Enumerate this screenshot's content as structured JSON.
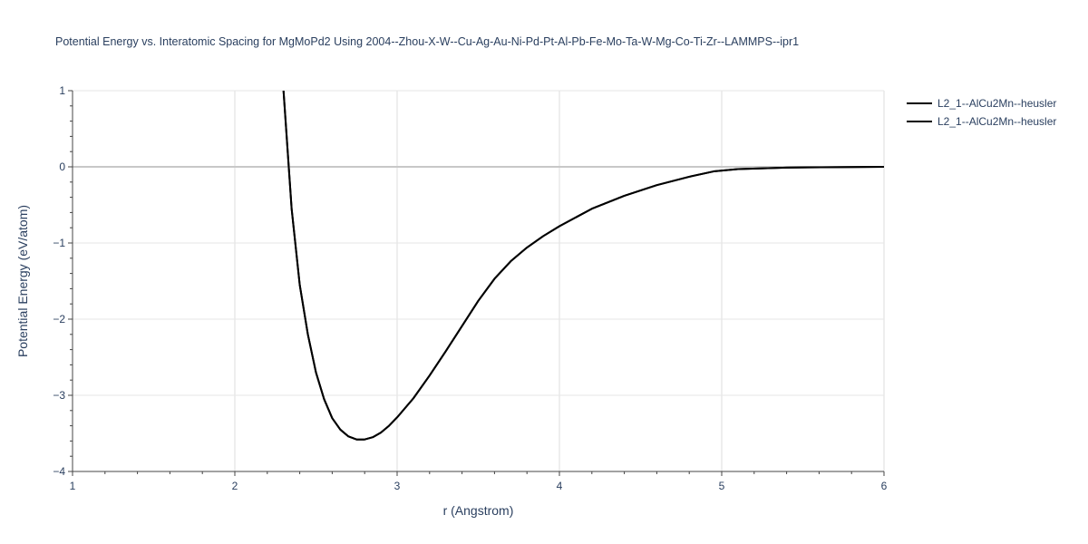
{
  "chart_data": {
    "type": "line",
    "title": "Potential Energy vs. Interatomic Spacing for MgMoPd2 Using 2004--Zhou-X-W--Cu-Ag-Au-Ni-Pd-Pt-Al-Pb-Fe-Mo-Ta-W-Mg-Co-Ti-Zr--LAMMPS--ipr1",
    "xlabel": "r (Angstrom)",
    "ylabel": "Potential Energy (eV/atom)",
    "xlim": [
      1,
      6
    ],
    "ylim": [
      -4,
      1
    ],
    "xticks": [
      1,
      2,
      3,
      4,
      5,
      6
    ],
    "xtick_labels": [
      "1",
      "2",
      "3",
      "4",
      "5",
      "6"
    ],
    "yticks": [
      -4,
      -3,
      -2,
      -1,
      0,
      1
    ],
    "ytick_labels": [
      "−4",
      "−3",
      "−2",
      "−1",
      "0",
      "1"
    ],
    "grid": true,
    "legend_position": "top-right",
    "series": [
      {
        "name": "L2_1--AlCu2Mn--heusler",
        "color": "#000000",
        "x": [
          2.3,
          2.35,
          2.4,
          2.45,
          2.5,
          2.55,
          2.6,
          2.65,
          2.7,
          2.75,
          2.8,
          2.85,
          2.9,
          2.95,
          3.0,
          3.1,
          3.2,
          3.3,
          3.4,
          3.5,
          3.6,
          3.7,
          3.8,
          3.9,
          4.0,
          4.2,
          4.4,
          4.6,
          4.8,
          4.95,
          5.1,
          5.4,
          6.0
        ],
        "y": [
          1.0,
          -0.55,
          -1.55,
          -2.2,
          -2.7,
          -3.05,
          -3.3,
          -3.45,
          -3.54,
          -3.58,
          -3.58,
          -3.55,
          -3.49,
          -3.4,
          -3.29,
          -3.04,
          -2.74,
          -2.42,
          -2.09,
          -1.76,
          -1.47,
          -1.24,
          -1.06,
          -0.91,
          -0.78,
          -0.55,
          -0.38,
          -0.24,
          -0.13,
          -0.06,
          -0.03,
          -0.01,
          0.0
        ]
      },
      {
        "name": "L2_1--AlCu2Mn--heusler",
        "color": "#000000",
        "x": [
          2.3,
          2.35,
          2.4,
          2.45,
          2.5,
          2.55,
          2.6,
          2.65,
          2.7,
          2.75,
          2.8,
          2.85,
          2.9,
          2.95,
          3.0,
          3.1,
          3.2,
          3.3,
          3.4,
          3.5,
          3.6,
          3.7,
          3.8,
          3.9,
          4.0,
          4.2,
          4.4,
          4.6,
          4.8,
          4.95,
          5.1,
          5.4,
          6.0
        ],
        "y": [
          1.0,
          -0.55,
          -1.55,
          -2.2,
          -2.7,
          -3.05,
          -3.3,
          -3.45,
          -3.54,
          -3.58,
          -3.58,
          -3.55,
          -3.49,
          -3.4,
          -3.29,
          -3.04,
          -2.74,
          -2.42,
          -2.09,
          -1.76,
          -1.47,
          -1.24,
          -1.06,
          -0.91,
          -0.78,
          -0.55,
          -0.38,
          -0.24,
          -0.13,
          -0.06,
          -0.03,
          -0.01,
          0.0
        ]
      }
    ]
  }
}
